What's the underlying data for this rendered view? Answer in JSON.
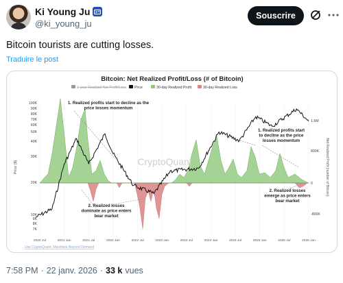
{
  "author": {
    "display_name": "Ki Young Ju",
    "handle": "@ki_young_ju"
  },
  "actions": {
    "subscribe_label": "Souscrire"
  },
  "icons": [
    "verified-badge-icon",
    "grok-icon",
    "more-icon"
  ],
  "tweet": {
    "text": "Bitcoin tourists are cutting losses.",
    "translate_label": "Traduire le post"
  },
  "meta": {
    "time": "7:58 PM",
    "sep1": "·",
    "date": "22 janv. 2026",
    "sep2": "·",
    "views_count": "33 k",
    "views_label": "vues"
  },
  "colors": {
    "accent": "#1d9bf0",
    "profit": "#8fc77a",
    "loss": "#d98383",
    "price": "#111111"
  },
  "chart_data": {
    "type": "line",
    "title": "Bitcoin: Net Realized Profit/Loss (# of Bitcoin)",
    "legend": [
      "1-year Realized Net Profit/Loss",
      "Price",
      "30-day Realized Profit",
      "30-day Realized Loss"
    ],
    "watermark": "CryptoQuant",
    "source": "Use CryptoQuant, Maximize Beyond Demand",
    "ylabel_left": "Price ($)",
    "ylabel_right": "Net Realized Profit (number of Bitcoin)",
    "y_left_ticks": [
      "100K",
      "90K",
      "80K",
      "70K",
      "60K",
      "50K",
      "40K",
      "30K",
      "20K",
      "10K",
      "9K",
      "8K",
      "7K"
    ],
    "y_right_ticks": [
      "1.6M",
      "800K",
      "0",
      "-800K"
    ],
    "x_ticks": [
      "2020 Jul",
      "2021 Jan",
      "2021 Jul",
      "2022 Jan",
      "2022 Jul",
      "2023 Jan",
      "2023 Jul",
      "2024 Jan",
      "2024 Jul",
      "2025 Jan",
      "2025 Jul",
      "2026 Jan"
    ],
    "annotations": [
      [
        "1. Realized profits start to decline as the",
        "price losses momentum"
      ],
      [
        "1. Realized profits start",
        "to decline as the price",
        "losses momentum"
      ],
      [
        "2. Realized losses",
        "dominate as price enters",
        "bear market"
      ],
      [
        "2. Realized losses",
        "emerge as price enters",
        "bear market"
      ]
    ],
    "price_series": {
      "name": "Price",
      "x": [
        "2020-06",
        "2020-10",
        "2021-01",
        "2021-04",
        "2021-07",
        "2021-11",
        "2022-01",
        "2022-06",
        "2022-11",
        "2023-03",
        "2023-10",
        "2024-03",
        "2024-08",
        "2024-12",
        "2025-04",
        "2025-10",
        "2026-01"
      ],
      "y": [
        9500,
        11500,
        33000,
        60000,
        33000,
        67000,
        42000,
        20000,
        16500,
        28000,
        30000,
        70000,
        57000,
        100000,
        80000,
        120000,
        90000
      ]
    }
  }
}
